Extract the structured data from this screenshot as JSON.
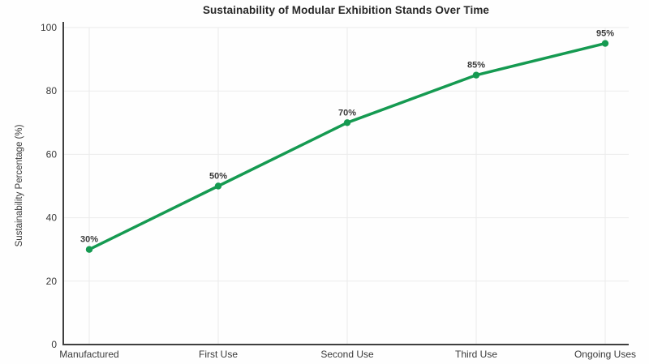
{
  "chart_data": {
    "type": "line",
    "title": "Sustainability of Modular Exhibition Stands Over Time",
    "xlabel": "",
    "ylabel": "Sustainability Percentage (%)",
    "categories": [
      "Manufactured",
      "First Use",
      "Second Use",
      "Third Use",
      "Ongoing Uses"
    ],
    "values": [
      30,
      50,
      70,
      85,
      95
    ],
    "point_labels": [
      "30%",
      "50%",
      "70%",
      "85%",
      "95%"
    ],
    "ylim": [
      0,
      100
    ],
    "yticks": [
      0,
      20,
      40,
      60,
      80,
      100
    ],
    "grid": true,
    "legend_position": "none",
    "colors": {
      "line": "#159a51",
      "marker": "#159a51",
      "grid": "#ebebeb",
      "spine": "#3f3f3f",
      "tick_text": "#3a3a3a",
      "point_label_text": "#3a3a3a",
      "title_text": "#262626"
    }
  }
}
